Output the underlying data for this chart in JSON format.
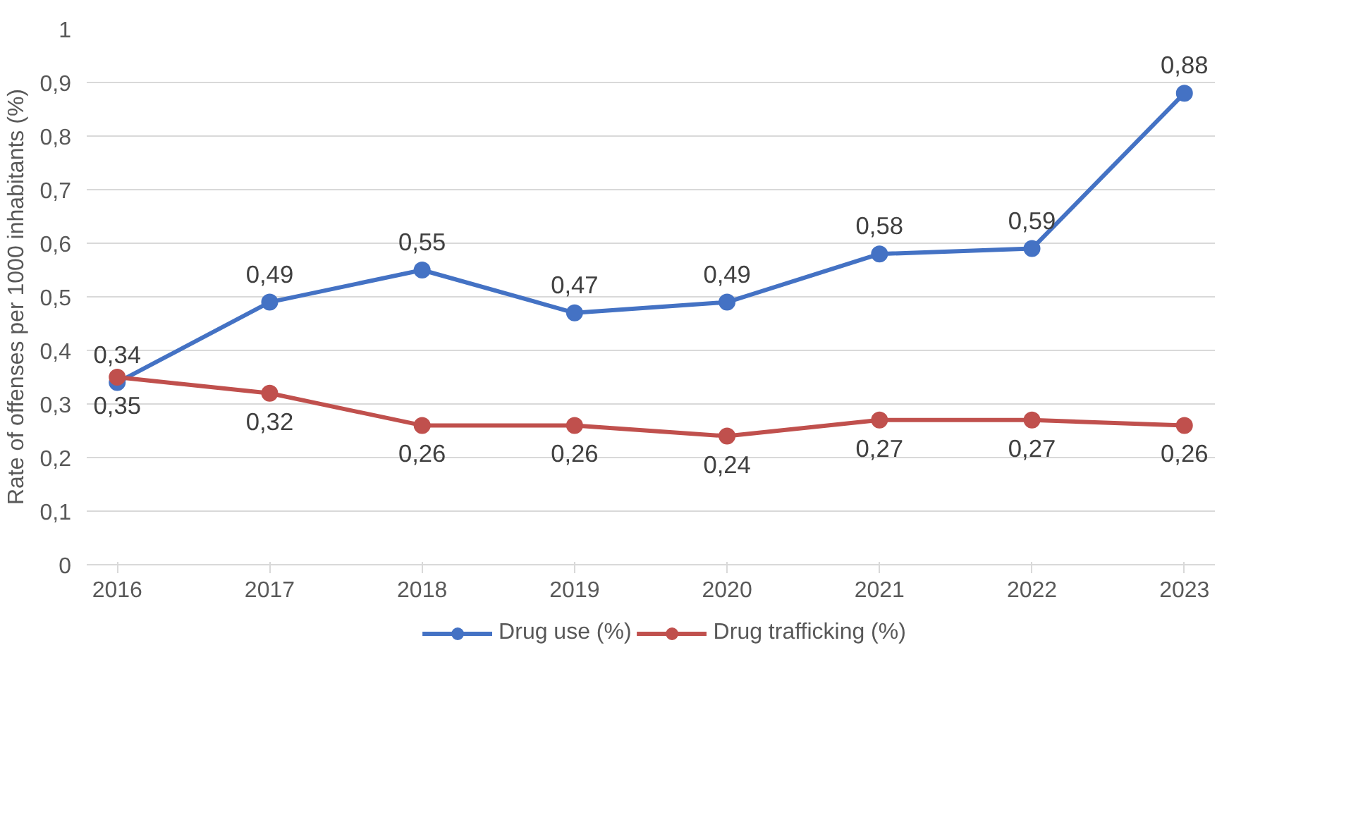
{
  "chart_data": {
    "type": "line",
    "ylabel": "Rate of offenses per 1000 inhabitants (%)",
    "categories": [
      "2016",
      "2017",
      "2018",
      "2019",
      "2020",
      "2021",
      "2022",
      "2023"
    ],
    "series": [
      {
        "name": "Drug use (%)",
        "color": "#4472c4",
        "values": [
          0.34,
          0.49,
          0.55,
          0.47,
          0.49,
          0.58,
          0.59,
          0.88
        ],
        "value_labels": [
          "0,34",
          "0,49",
          "0,55",
          "0,47",
          "0,49",
          "0,58",
          "0,59",
          "0,88"
        ]
      },
      {
        "name": "Drug trafficking (%)",
        "color": "#c0504d",
        "values": [
          0.35,
          0.32,
          0.26,
          0.26,
          0.24,
          0.27,
          0.27,
          0.26
        ],
        "value_labels": [
          "0,35",
          "0,32",
          "0,26",
          "0,26",
          "0,24",
          "0,27",
          "0,27",
          "0,26"
        ]
      }
    ],
    "ylim": [
      0,
      1
    ],
    "yticks": [
      0,
      {
        "value": 0.1,
        "label": "0,1"
      },
      {
        "value": 0.2,
        "label": "0,2"
      },
      {
        "value": 0.3,
        "label": "0,3"
      },
      {
        "value": 0.4,
        "label": "0,4"
      },
      {
        "value": 0.5,
        "label": "0,5"
      },
      {
        "value": 0.6,
        "label": "0,6"
      },
      {
        "value": 0.7,
        "label": "0,7"
      },
      {
        "value": 0.8,
        "label": "0,8"
      },
      {
        "value": 0.9,
        "label": "0,9"
      },
      1
    ],
    "grid": "y",
    "legend": "bottom",
    "marker": "circle",
    "line_style": "solid"
  }
}
